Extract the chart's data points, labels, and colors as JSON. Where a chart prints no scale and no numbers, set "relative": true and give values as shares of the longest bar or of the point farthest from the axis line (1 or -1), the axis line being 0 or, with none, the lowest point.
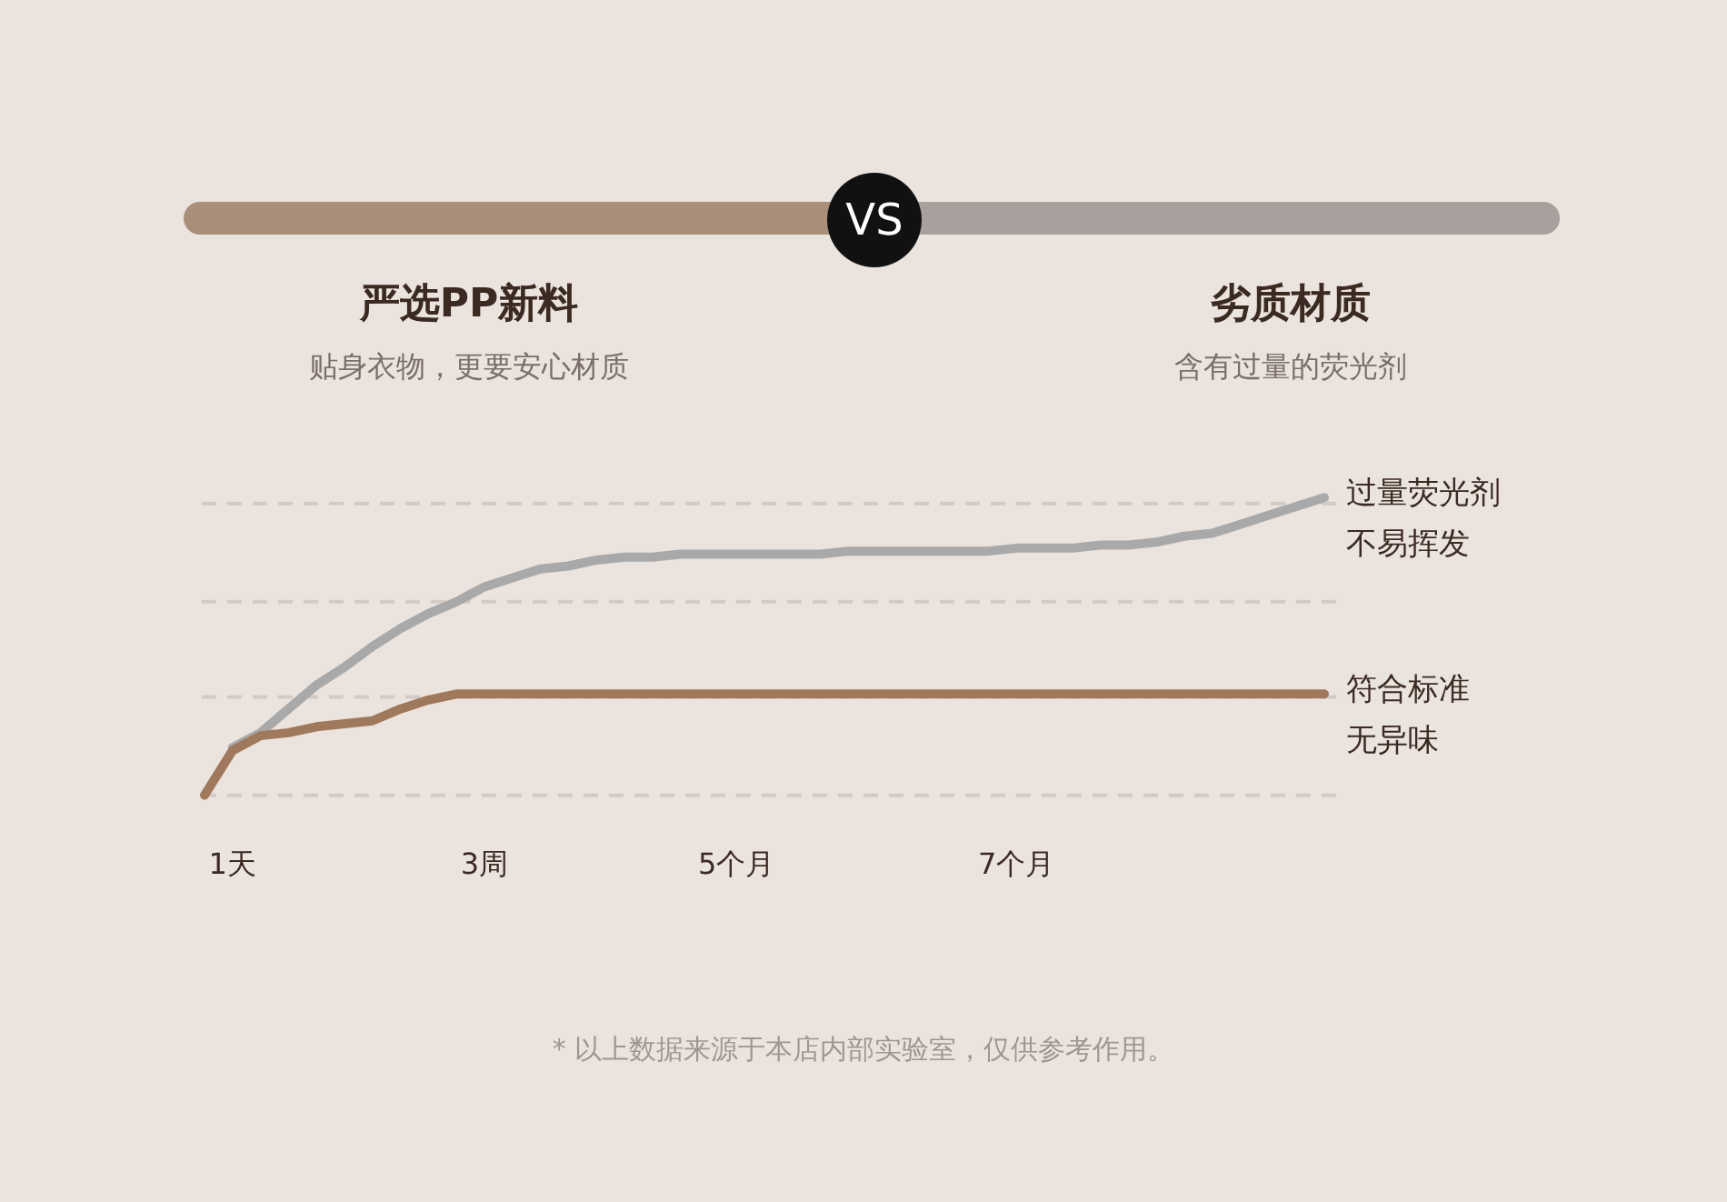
{
  "chart_data": {
    "type": "line",
    "relative": true,
    "annotations": [
      "VS",
      "严选PP新料",
      "贴身衣物，更要安心材质",
      "劣质材质",
      "含有过量的荧光剂",
      "* 以上数据来源于本店内部实验室，仅供参考作用。"
    ],
    "categories": [
      null,
      "1天",
      null,
      null,
      null,
      null,
      null,
      null,
      null,
      null,
      "3周",
      null,
      null,
      null,
      null,
      null,
      null,
      null,
      null,
      "5个月",
      null,
      null,
      null,
      null,
      null,
      null,
      null,
      null,
      null,
      "7个月",
      null,
      null,
      null,
      null,
      null,
      null,
      null,
      null,
      null,
      null,
      null
    ],
    "ref_lines": [
      {
        "axis": "y",
        "value": 0,
        "label": null,
        "color": "#d2cac4",
        "line_style": "dashed"
      },
      {
        "axis": "y",
        "value": 0.33,
        "label": null,
        "color": "#d2cac4",
        "line_style": "dashed"
      },
      {
        "axis": "y",
        "value": 0.65,
        "label": null,
        "color": "#d2cac4",
        "line_style": "dashed"
      },
      {
        "axis": "y",
        "value": 0.98,
        "label": null,
        "color": "#d2cac4",
        "line_style": "dashed"
      }
    ],
    "series": [
      {
        "name": "过量荧光剂不易挥发",
        "color": "#a9a9aa",
        "values": [
          null,
          0.16,
          0.21,
          0.29,
          0.37,
          0.43,
          0.5,
          0.56,
          0.61,
          0.65,
          0.7,
          0.73,
          0.76,
          0.77,
          0.79,
          0.8,
          0.8,
          0.81,
          0.81,
          0.81,
          0.81,
          0.81,
          0.81,
          0.82,
          0.82,
          0.82,
          0.82,
          0.82,
          0.82,
          0.83,
          0.83,
          0.83,
          0.84,
          0.84,
          0.85,
          0.87,
          0.88,
          0.91,
          0.94,
          0.97,
          1
        ]
      },
      {
        "name": "符合标准无异味",
        "color": "#a0795c",
        "values": [
          0,
          0.15,
          0.2,
          0.21,
          0.23,
          0.24,
          0.25,
          0.29,
          0.32,
          0.34,
          0.34,
          0.34,
          0.34,
          0.34,
          0.34,
          0.34,
          0.34,
          0.34,
          0.34,
          0.34,
          0.34,
          0.34,
          0.34,
          0.34,
          0.34,
          0.34,
          0.34,
          0.34,
          0.34,
          0.34,
          0.34,
          0.34,
          0.34,
          0.34,
          0.34,
          0.34,
          0.34,
          0.34,
          0.34,
          0.34,
          0.34
        ]
      }
    ]
  }
}
